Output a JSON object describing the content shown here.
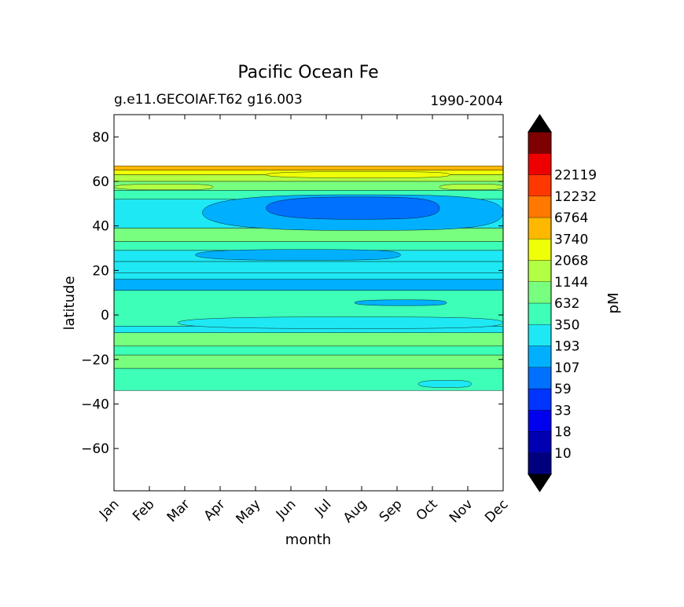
{
  "chart_data": {
    "type": "contourf",
    "title": "Pacific Ocean Fe",
    "subtitle_left": "g.e11.GECOIAF.T62 g16.003",
    "subtitle_right": "1990-2004",
    "xlabel": "month",
    "ylabel": "latitude",
    "x_categories": [
      "Jan",
      "Feb",
      "Mar",
      "Apr",
      "May",
      "Jun",
      "Jul",
      "Aug",
      "Sep",
      "Oct",
      "Nov",
      "Dec"
    ],
    "xlim": [
      0,
      11
    ],
    "ylim": [
      -79,
      90
    ],
    "yticks": [
      80,
      60,
      40,
      20,
      0,
      -20,
      -40,
      -60
    ],
    "ytick_labels": [
      "80",
      "60",
      "40",
      "20",
      "0",
      "−20",
      "−40",
      "−60"
    ],
    "colorbar": {
      "label": "pM",
      "levels": [
        "10",
        "18",
        "33",
        "59",
        "107",
        "193",
        "350",
        "632",
        "1144",
        "2068",
        "3740",
        "6764",
        "12232",
        "22119"
      ],
      "colors": [
        "#00007f",
        "#0000b2",
        "#0000ef",
        "#0034ff",
        "#0070ff",
        "#00b0ff",
        "#1ee8f4",
        "#3effb8",
        "#78ff7f",
        "#b2ff44",
        "#efff07",
        "#ffb800",
        "#ff7800",
        "#ff3800",
        "#ef0000",
        "#7f0000"
      ],
      "extend_min_color": "#000000",
      "extend_max_color": "#000000"
    },
    "bands": [
      {
        "lat_top": 67,
        "lat_bot": 65,
        "level": 11
      },
      {
        "lat_top": 65,
        "lat_bot": 63,
        "level": 10
      },
      {
        "lat_top": 63,
        "lat_bot": 60,
        "level": 9
      },
      {
        "lat_top": 60,
        "lat_bot": 56,
        "level": 8
      },
      {
        "lat_top": 56,
        "lat_bot": 52,
        "level": 7
      },
      {
        "lat_top": 52,
        "lat_bot": 39,
        "level": 6
      },
      {
        "lat_top": 39,
        "lat_bot": 33,
        "level": 8
      },
      {
        "lat_top": 33,
        "lat_bot": 29,
        "level": 7
      },
      {
        "lat_top": 29,
        "lat_bot": 24,
        "level": 6
      },
      {
        "lat_top": 24,
        "lat_bot": 19,
        "level": 6
      },
      {
        "lat_top": 19,
        "lat_bot": 16,
        "level": 6
      },
      {
        "lat_top": 16,
        "lat_bot": 11,
        "level": 5
      },
      {
        "lat_top": 11,
        "lat_bot": -5,
        "level": 7
      },
      {
        "lat_top": -5,
        "lat_bot": -8,
        "level": 6
      },
      {
        "lat_top": -8,
        "lat_bot": -14,
        "level": 8
      },
      {
        "lat_top": -14,
        "lat_bot": -18,
        "level": 7
      },
      {
        "lat_top": -18,
        "lat_bot": -24,
        "level": 8
      },
      {
        "lat_top": -24,
        "lat_bot": -34,
        "level": 7
      }
    ],
    "blobs": [
      {
        "month_from": 2.5,
        "month_to": 11,
        "lat_center": 46,
        "lat_half": 8,
        "level": 5
      },
      {
        "month_from": 4.3,
        "month_to": 9.2,
        "lat_center": 48,
        "lat_half": 5,
        "level": 4
      },
      {
        "month_from": 2.3,
        "month_to": 8.1,
        "lat_center": 27,
        "lat_half": 2.4,
        "level": 5
      },
      {
        "month_from": 6.8,
        "month_to": 9.4,
        "lat_center": 5.5,
        "lat_half": 1.3,
        "level": 5
      },
      {
        "month_from": 1.8,
        "month_to": 11,
        "lat_center": -3.5,
        "lat_half": 2.6,
        "level": 6
      },
      {
        "month_from": 8.6,
        "month_to": 10.1,
        "lat_center": -31,
        "lat_half": 1.6,
        "level": 6
      },
      {
        "month_from": 0,
        "month_to": 2.8,
        "lat_center": 57.5,
        "lat_half": 1.3,
        "level": 9
      },
      {
        "month_from": 9.2,
        "month_to": 11,
        "lat_center": 57.5,
        "lat_half": 1.3,
        "level": 9
      },
      {
        "month_from": 4.3,
        "month_to": 9.5,
        "lat_center": 63,
        "lat_half": 1.4,
        "level": 10
      }
    ]
  }
}
